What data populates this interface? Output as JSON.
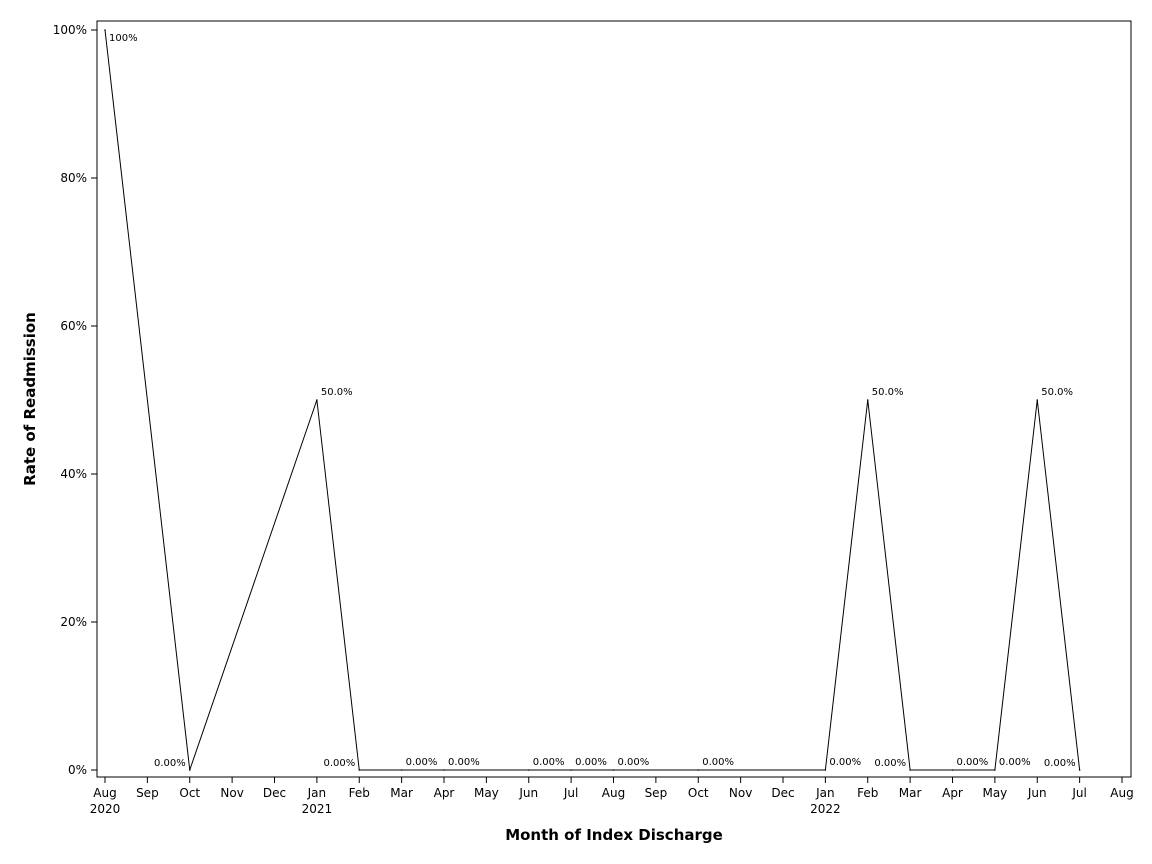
{
  "chart_data": {
    "type": "line",
    "xlabel": "Month of Index Discharge",
    "ylabel": "Rate of Readmission",
    "ylim": [
      0,
      100
    ],
    "yticks": [
      0,
      20,
      40,
      60,
      80,
      100
    ],
    "ytick_labels": [
      "0%",
      "20%",
      "40%",
      "60%",
      "80%",
      "100%"
    ],
    "x_axis_months": [
      "Aug",
      "Sep",
      "Oct",
      "Nov",
      "Dec",
      "Jan",
      "Feb",
      "Mar",
      "Apr",
      "May",
      "Jun",
      "Jul",
      "Aug",
      "Sep",
      "Oct",
      "Nov",
      "Dec",
      "Jan",
      "Feb",
      "Mar",
      "Apr",
      "May",
      "Jun",
      "Jul",
      "Aug"
    ],
    "x_axis_years": [
      {
        "under_month_index": 0,
        "label": "2020"
      },
      {
        "under_month_index": 5,
        "label": "2021"
      },
      {
        "under_month_index": 17,
        "label": "2022"
      }
    ],
    "grid": false,
    "legend": "none",
    "line_color": "#000000",
    "series": [
      {
        "points": [
          {
            "x": "2020-08-01",
            "y": 100,
            "label": "100%"
          },
          {
            "x": "2020-10-01",
            "y": 0,
            "label": "0.00%"
          },
          {
            "x": "2021-01-01",
            "y": 50,
            "label": "50.0%"
          },
          {
            "x": "2021-02-01",
            "y": 0,
            "label": "0.00%"
          },
          {
            "x": "2021-03-01",
            "y": 0,
            "label": "0.00%"
          },
          {
            "x": "2021-04-01",
            "y": 0,
            "label": "0.00%"
          },
          {
            "x": "2021-06-01",
            "y": 0,
            "label": "0.00%"
          },
          {
            "x": "2021-07-01",
            "y": 0,
            "label": "0.00%"
          },
          {
            "x": "2021-08-01",
            "y": 0,
            "label": "0.00%"
          },
          {
            "x": "2021-10-01",
            "y": 0,
            "label": "0.00%"
          },
          {
            "x": "2022-01-01",
            "y": 0,
            "label": "0.00%"
          },
          {
            "x": "2022-02-01",
            "y": 50,
            "label": "50.0%"
          },
          {
            "x": "2022-03-01",
            "y": 0,
            "label": "0.00%"
          },
          {
            "x": "2022-04-01",
            "y": 0,
            "label": "0.00%"
          },
          {
            "x": "2022-05-01",
            "y": 0,
            "label": "0.00%"
          },
          {
            "x": "2022-06-01",
            "y": 50,
            "label": "50.0%"
          },
          {
            "x": "2022-07-01",
            "y": 0,
            "label": "0.00%"
          }
        ]
      }
    ]
  }
}
